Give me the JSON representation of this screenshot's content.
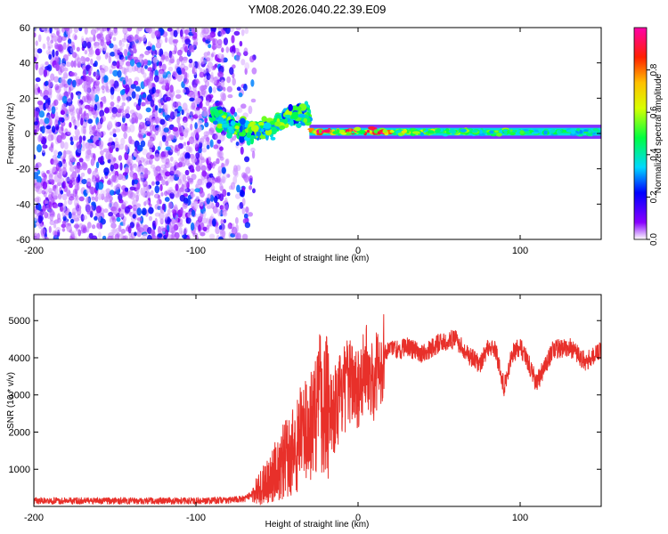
{
  "title": "YM08.2026.040.22.39.E09",
  "chart_data": [
    {
      "type": "heatmap",
      "name": "spectrogram",
      "xlabel": "Height of straight line (km)",
      "ylabel": "Frequency (Hz)",
      "xlim": [
        -200,
        150
      ],
      "ylim": [
        -60,
        60
      ],
      "xticks": [
        -200,
        -100,
        0,
        100
      ],
      "yticks": [
        -60,
        -40,
        -20,
        0,
        20,
        40,
        60
      ],
      "x_tick_labels": [
        "-200",
        "-100",
        "0",
        "100"
      ],
      "y_tick_labels": [
        "-60",
        "-40",
        "-20",
        "0",
        "20",
        "40",
        "60"
      ],
      "description_regions": [
        {
          "x_range": [
            -200,
            -72
          ],
          "amplitude": [
            0.05,
            0.3
          ],
          "kind": "noise"
        },
        {
          "x_range": [
            -90,
            -30
          ],
          "freq_center": 5,
          "freq_spread": 8,
          "amplitude": [
            0.2,
            0.6
          ],
          "kind": "signal-onset"
        },
        {
          "x_range": [
            -30,
            150
          ],
          "freq_center": 1,
          "freq_spread": 2,
          "amplitude": [
            0.4,
            0.95
          ],
          "kind": "tone"
        }
      ],
      "colorbar": {
        "label": "Normalized spectral amplitude",
        "ticks": [
          0.0,
          0.2,
          0.4,
          0.6,
          0.8
        ],
        "tick_labels": [
          "0.0",
          "0.2",
          "0.4",
          "0.6",
          "0.8"
        ],
        "range": [
          0,
          1
        ]
      }
    },
    {
      "type": "line",
      "name": "snr",
      "xlabel": "Height of straight line (km)",
      "ylabel": "SNR (10 * v/v)",
      "xlim": [
        -200,
        150
      ],
      "ylim": [
        0,
        5700
      ],
      "xticks": [
        -200,
        -100,
        0,
        100
      ],
      "yticks": [
        1000,
        2000,
        3000,
        4000,
        5000
      ],
      "x_tick_labels": [
        "-200",
        "-100",
        "0",
        "100"
      ],
      "y_tick_labels": [
        "1000",
        "2000",
        "3000",
        "4000",
        "5000"
      ],
      "color": "#e8302a",
      "x": [
        -200,
        -150,
        -100,
        -80,
        -70,
        -60,
        -50,
        -40,
        -35,
        -30,
        -25,
        -20,
        -15,
        -10,
        -5,
        0,
        5,
        10,
        15,
        20,
        25,
        30,
        40,
        50,
        60,
        70,
        75,
        80,
        85,
        90,
        95,
        100,
        105,
        110,
        120,
        130,
        140,
        150
      ],
      "values": [
        150,
        150,
        150,
        170,
        200,
        500,
        1000,
        1500,
        1900,
        2100,
        2800,
        2900,
        2600,
        3000,
        3400,
        3300,
        3700,
        3500,
        4000,
        4300,
        4200,
        4300,
        4100,
        4400,
        4500,
        4000,
        3800,
        4300,
        4200,
        3200,
        4100,
        4300,
        3900,
        3300,
        4200,
        4300,
        3900,
        4200
      ]
    }
  ]
}
